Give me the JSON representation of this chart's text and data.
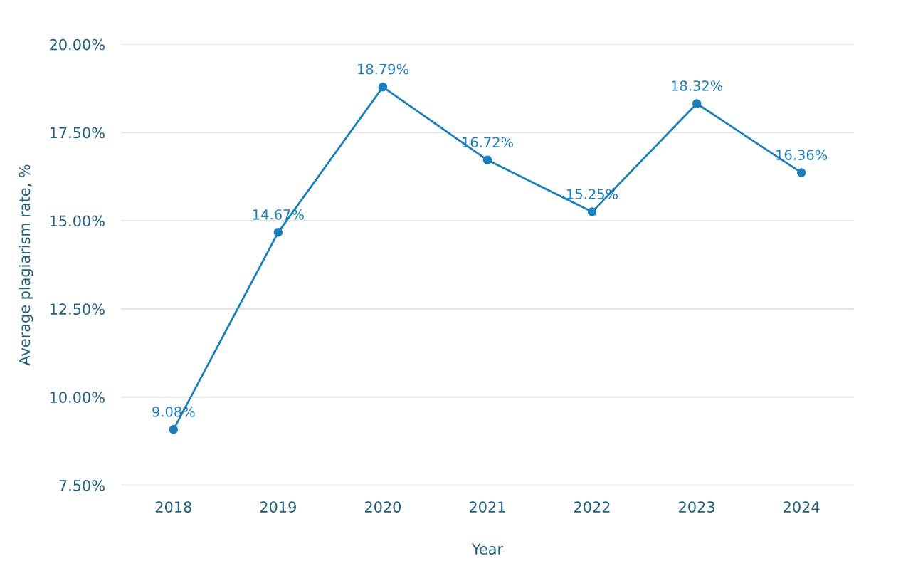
{
  "chart_data": {
    "type": "line",
    "xlabel": "Year",
    "ylabel": "Average plagiarism rate, %",
    "categories": [
      "2018",
      "2019",
      "2020",
      "2021",
      "2022",
      "2023",
      "2024"
    ],
    "series": [
      {
        "color": "#1a7fb8",
        "values": [
          9.08,
          14.67,
          18.79,
          16.72,
          15.25,
          18.32,
          16.36
        ],
        "value_labels": [
          "9.08%",
          "14.67%",
          "18.79%",
          "16.72%",
          "15.25%",
          "18.32%",
          "16.36%"
        ]
      }
    ],
    "ylim": [
      7.5,
      20
    ],
    "yticks": [
      {
        "value": 7.5,
        "label": "7.50%"
      },
      {
        "value": 10,
        "label": "10.00%"
      },
      {
        "value": 12.5,
        "label": "12.50%"
      },
      {
        "value": 15,
        "label": "15.00%"
      },
      {
        "value": 17.5,
        "label": "17.50%"
      },
      {
        "value": 20,
        "label": "20.00%"
      }
    ],
    "grid": "y",
    "marker": "circle",
    "line_style": "solid",
    "legend": false
  }
}
